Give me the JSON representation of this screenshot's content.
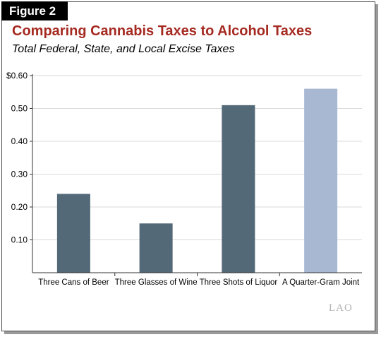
{
  "figure_label": "Figure 2",
  "watermark": "LAO",
  "chart_data": {
    "type": "bar",
    "title": "Comparing Cannabis Taxes to Alcohol Taxes",
    "subtitle": "Total Federal, State, and Local Excise Taxes",
    "xlabel": "",
    "ylabel": "",
    "categories": [
      "Three Cans of Beer",
      "Three Glasses of Wine",
      "Three Shots of Liquor",
      "A Quarter-Gram Joint"
    ],
    "values": [
      0.24,
      0.15,
      0.51,
      0.56
    ],
    "bar_colors": [
      "#546978",
      "#546978",
      "#546978",
      "#a8b8d3"
    ],
    "ylim": [
      0,
      0.6
    ],
    "yticks": [
      0.1,
      0.2,
      0.3,
      0.4,
      0.5,
      0.6
    ],
    "ytick_labels": [
      "0.10",
      "0.20",
      "0.30",
      "0.40",
      "0.50",
      "$0.60"
    ],
    "grid": true,
    "legend": "none"
  }
}
